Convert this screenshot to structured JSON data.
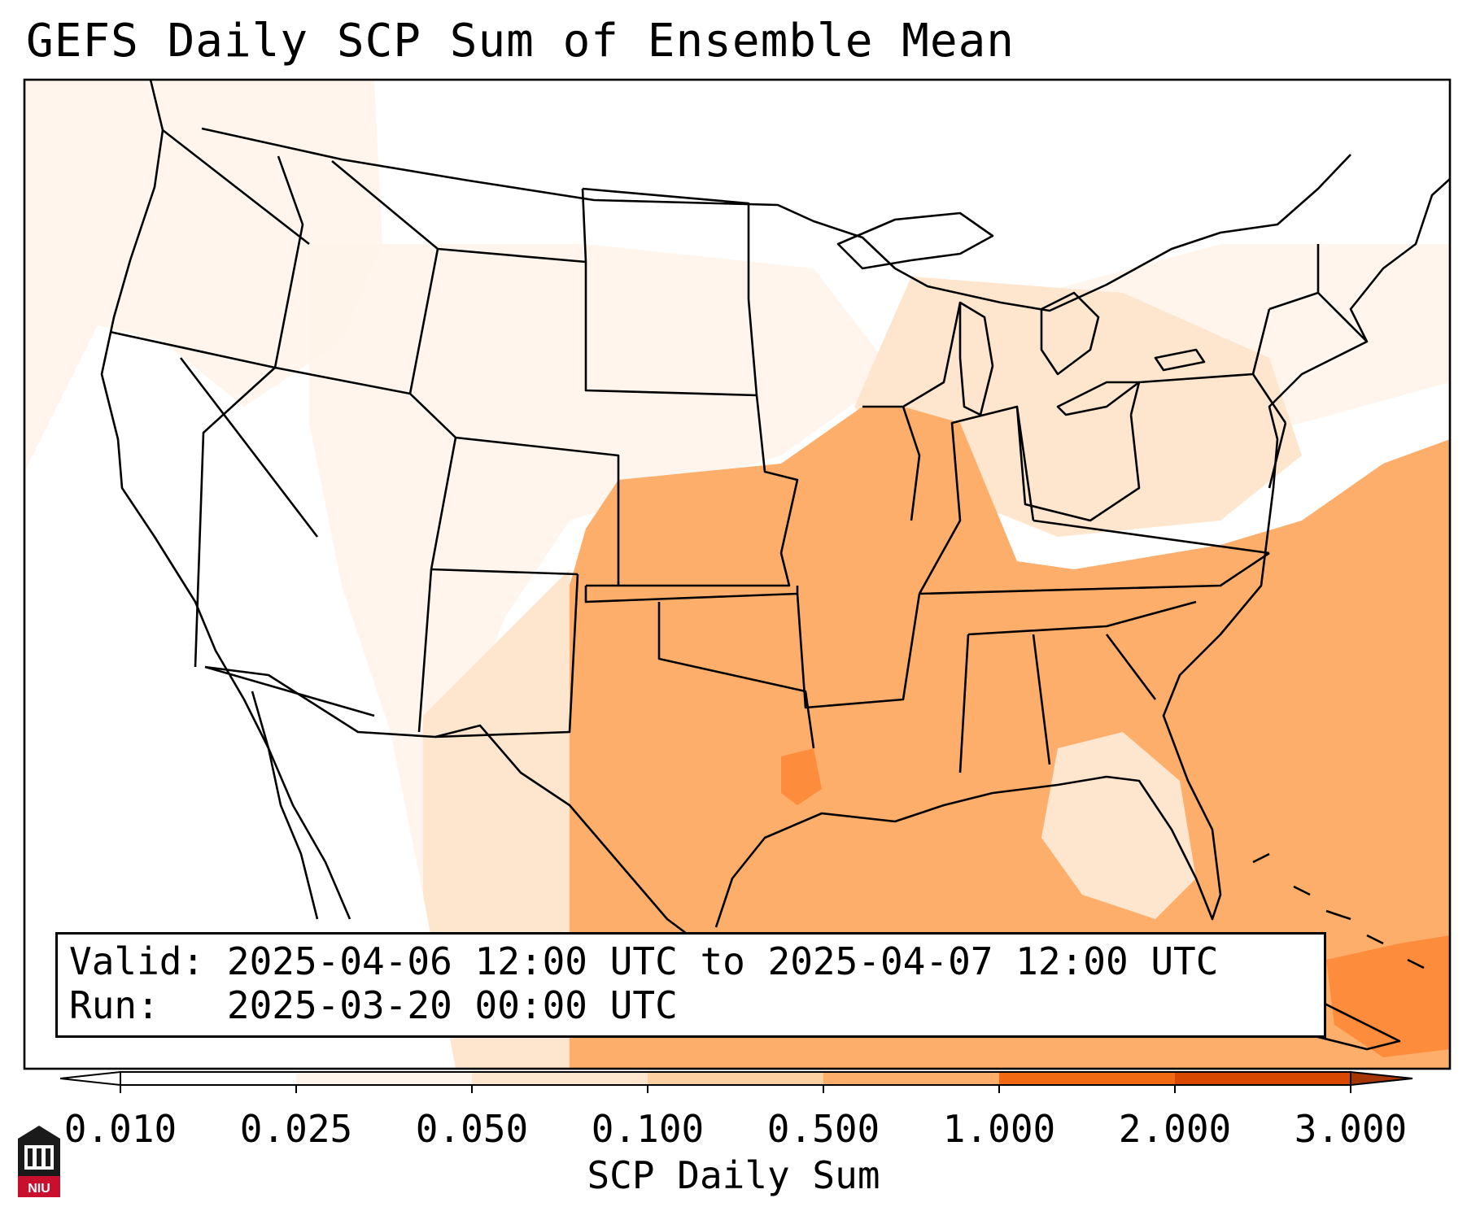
{
  "title": "GEFS Daily SCP Sum of Ensemble Mean",
  "info": {
    "valid_label": "Valid:",
    "valid_value": "2025-04-06 12:00 UTC to 2025-04-07 12:00 UTC",
    "run_label": "Run:",
    "run_value": "2025-03-20 00:00 UTC"
  },
  "colorbar": {
    "label": "SCP Daily Sum",
    "ticks": [
      "0.010",
      "0.025",
      "0.050",
      "0.100",
      "0.500",
      "1.000",
      "2.000",
      "3.000"
    ],
    "colors": [
      "#fff4ea",
      "#fee6ce",
      "#fdd0a2",
      "#fdae6b",
      "#fd8d3c",
      "#f16913",
      "#d94801",
      "#a63603"
    ]
  },
  "logo": {
    "text": "NIU",
    "icon": "niu-tower-logo-icon"
  }
}
